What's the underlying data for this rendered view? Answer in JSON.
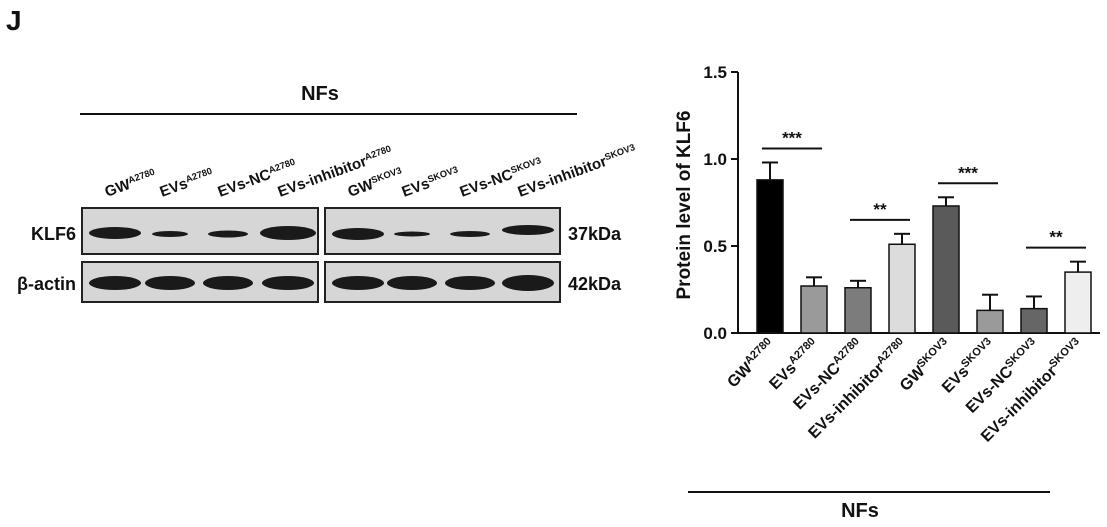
{
  "panel_label": "J",
  "blot": {
    "group_label": "NFs",
    "lanes": [
      {
        "text": "GW",
        "sup": "A2780"
      },
      {
        "text": "EVs",
        "sup": "A2780"
      },
      {
        "text": "EVs-NC",
        "sup": "A2780"
      },
      {
        "text": "EVs-inhibitor",
        "sup": "A2780"
      },
      {
        "text": "GW",
        "sup": "SKOV3"
      },
      {
        "text": "EVs",
        "sup": "SKOV3"
      },
      {
        "text": "EVs-NC",
        "sup": "SKOV3"
      },
      {
        "text": "EVs-inhibitor",
        "sup": "SKOV3"
      }
    ],
    "rows": [
      {
        "label": "KLF6",
        "size": "37kDa"
      },
      {
        "label": "β-actin",
        "size": "42kDa"
      }
    ]
  },
  "chart_data": {
    "type": "bar",
    "ylabel": "Protein level of KLF6",
    "group_label": "NFs",
    "categories": [
      {
        "text": "GW",
        "sup": "A2780"
      },
      {
        "text": "EVs",
        "sup": "A2780"
      },
      {
        "text": "EVs-NC",
        "sup": "A2780"
      },
      {
        "text": "EVs-inhibitor",
        "sup": "A2780"
      },
      {
        "text": "GW",
        "sup": "SKOV3"
      },
      {
        "text": "EVs",
        "sup": "SKOV3"
      },
      {
        "text": "EVs-NC",
        "sup": "SKOV3"
      },
      {
        "text": "EVs-inhibitor",
        "sup": "SKOV3"
      }
    ],
    "values": [
      0.88,
      0.27,
      0.26,
      0.51,
      0.73,
      0.13,
      0.14,
      0.35
    ],
    "errors": [
      0.1,
      0.05,
      0.04,
      0.06,
      0.05,
      0.09,
      0.07,
      0.06
    ],
    "colors": [
      "#000000",
      "#9a9a9a",
      "#7c7c7c",
      "#dcdcdc",
      "#5a5a5a",
      "#9a9a9a",
      "#666666",
      "#eeeeee"
    ],
    "ylim": [
      0,
      1.5
    ],
    "yticks": [
      {
        "value": 0,
        "label": "0.0"
      },
      {
        "value": 0.5,
        "label": "0.5"
      },
      {
        "value": 1,
        "label": "1.0"
      },
      {
        "value": 1.5,
        "label": "1.5"
      }
    ],
    "annotations": [
      {
        "text": "***",
        "from": 0,
        "to": 1
      },
      {
        "text": "**",
        "from": 2,
        "to": 3
      },
      {
        "text": "***",
        "from": 4,
        "to": 5
      },
      {
        "text": "**",
        "from": 6,
        "to": 7
      }
    ]
  }
}
